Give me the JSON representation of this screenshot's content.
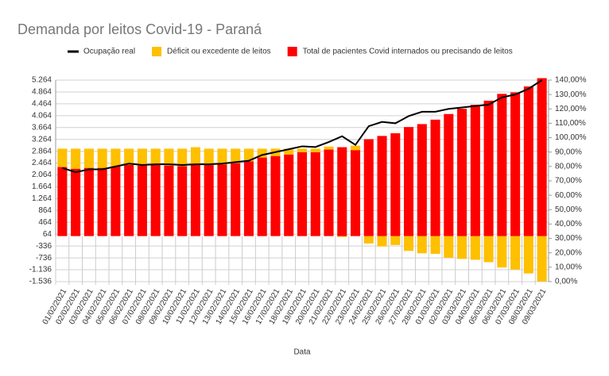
{
  "chart_data": {
    "type": "bar",
    "title": "Demanda por leitos Covid-19 - Paraná",
    "x_label": "Data",
    "legend": "top",
    "grid": true,
    "categories": [
      "01/02/2021",
      "02/02/2021",
      "03/02/2021",
      "04/02/2021",
      "05/02/2021",
      "06/02/2021",
      "07/02/2021",
      "08/02/2021",
      "09/02/2021",
      "10/02/2021",
      "11/02/2021",
      "12/02/2021",
      "13/02/2021",
      "14/02/2021",
      "15/02/2021",
      "16/02/2021",
      "17/02/2021",
      "18/02/2021",
      "19/02/2021",
      "20/02/2021",
      "21/02/2021",
      "22/02/2021",
      "23/02/2021",
      "24/02/2021",
      "25/02/2021",
      "26/02/2021",
      "27/02/2021",
      "28/02/2021",
      "01/03/2021",
      "02/03/2021",
      "03/03/2021",
      "04/03/2021",
      "05/03/2021",
      "06/03/2021",
      "07/03/2021",
      "08/03/2021",
      "09/03/2021"
    ],
    "series": [
      {
        "name": "Ocupação real",
        "type": "line",
        "axis": "y2",
        "color": "#000000",
        "values": [
          79,
          76,
          78,
          78,
          80,
          82,
          81,
          81.5,
          81.5,
          81,
          81.5,
          81.5,
          82,
          83,
          84,
          88,
          90,
          92,
          94,
          93.5,
          97,
          101,
          95,
          108,
          111,
          110,
          115,
          118,
          118,
          120,
          121,
          122,
          123,
          128,
          130,
          134,
          140
        ]
      },
      {
        "name": "Déficit ou excedente de leitos",
        "type": "bar",
        "stack": "top",
        "color": "#ffc000",
        "values": [
          620,
          680,
          650,
          650,
          600,
          550,
          570,
          550,
          570,
          590,
          600,
          550,
          530,
          490,
          430,
          300,
          250,
          200,
          120,
          120,
          100,
          -30,
          150,
          -250,
          -350,
          -300,
          -500,
          -580,
          -600,
          -730,
          -770,
          -800,
          -880,
          -1060,
          -1130,
          -1260,
          -1530
        ]
      },
      {
        "name": "Total de pacientes Covid internados ou precisando de leitos",
        "type": "bar",
        "stack": "base",
        "color": "#ff0000",
        "values": [
          2330,
          2270,
          2300,
          2300,
          2350,
          2400,
          2380,
          2400,
          2380,
          2360,
          2400,
          2400,
          2420,
          2460,
          2520,
          2650,
          2700,
          2750,
          2830,
          2830,
          2920,
          3000,
          2900,
          3270,
          3380,
          3470,
          3680,
          3780,
          3930,
          4120,
          4300,
          4430,
          4570,
          4800,
          4850,
          5050,
          5330
        ]
      }
    ],
    "ylim": [
      -1536,
      5264
    ],
    "yticks": [
      {
        "value": -1536,
        "label": "-1.536"
      },
      {
        "value": -1136,
        "label": "-1.136"
      },
      -736,
      -336,
      64,
      464,
      864,
      {
        "value": 1264,
        "label": "1.264"
      },
      {
        "value": 1664,
        "label": "1.664"
      },
      {
        "value": 2064,
        "label": "2.064"
      },
      {
        "value": 2464,
        "label": "2.464"
      },
      {
        "value": 2864,
        "label": "2.864"
      },
      {
        "value": 3264,
        "label": "3.264"
      },
      {
        "value": 3664,
        "label": "3.664"
      },
      {
        "value": 4064,
        "label": "4.064"
      },
      {
        "value": 4464,
        "label": "4.464"
      },
      {
        "value": 4864,
        "label": "4.864"
      },
      {
        "value": 5264,
        "label": "5.264"
      }
    ],
    "y2lim": [
      0,
      140
    ],
    "y2ticks": [
      {
        "value": 0,
        "label": "0,00%"
      },
      {
        "value": 10,
        "label": "10,00%"
      },
      {
        "value": 20,
        "label": "20,00%"
      },
      {
        "value": 30,
        "label": "30,00%"
      },
      {
        "value": 40,
        "label": "40,00%"
      },
      {
        "value": 50,
        "label": "50,00%"
      },
      {
        "value": 60,
        "label": "60,00%"
      },
      {
        "value": 70,
        "label": "70,00%"
      },
      {
        "value": 80,
        "label": "80,00%"
      },
      {
        "value": 90,
        "label": "90,00%"
      },
      {
        "value": 100,
        "label": "100,00%"
      },
      {
        "value": 110,
        "label": "110,00%"
      },
      {
        "value": 120,
        "label": "120,00%"
      },
      {
        "value": 130,
        "label": "130,00%"
      },
      {
        "value": 140,
        "label": "140,00%"
      }
    ]
  }
}
